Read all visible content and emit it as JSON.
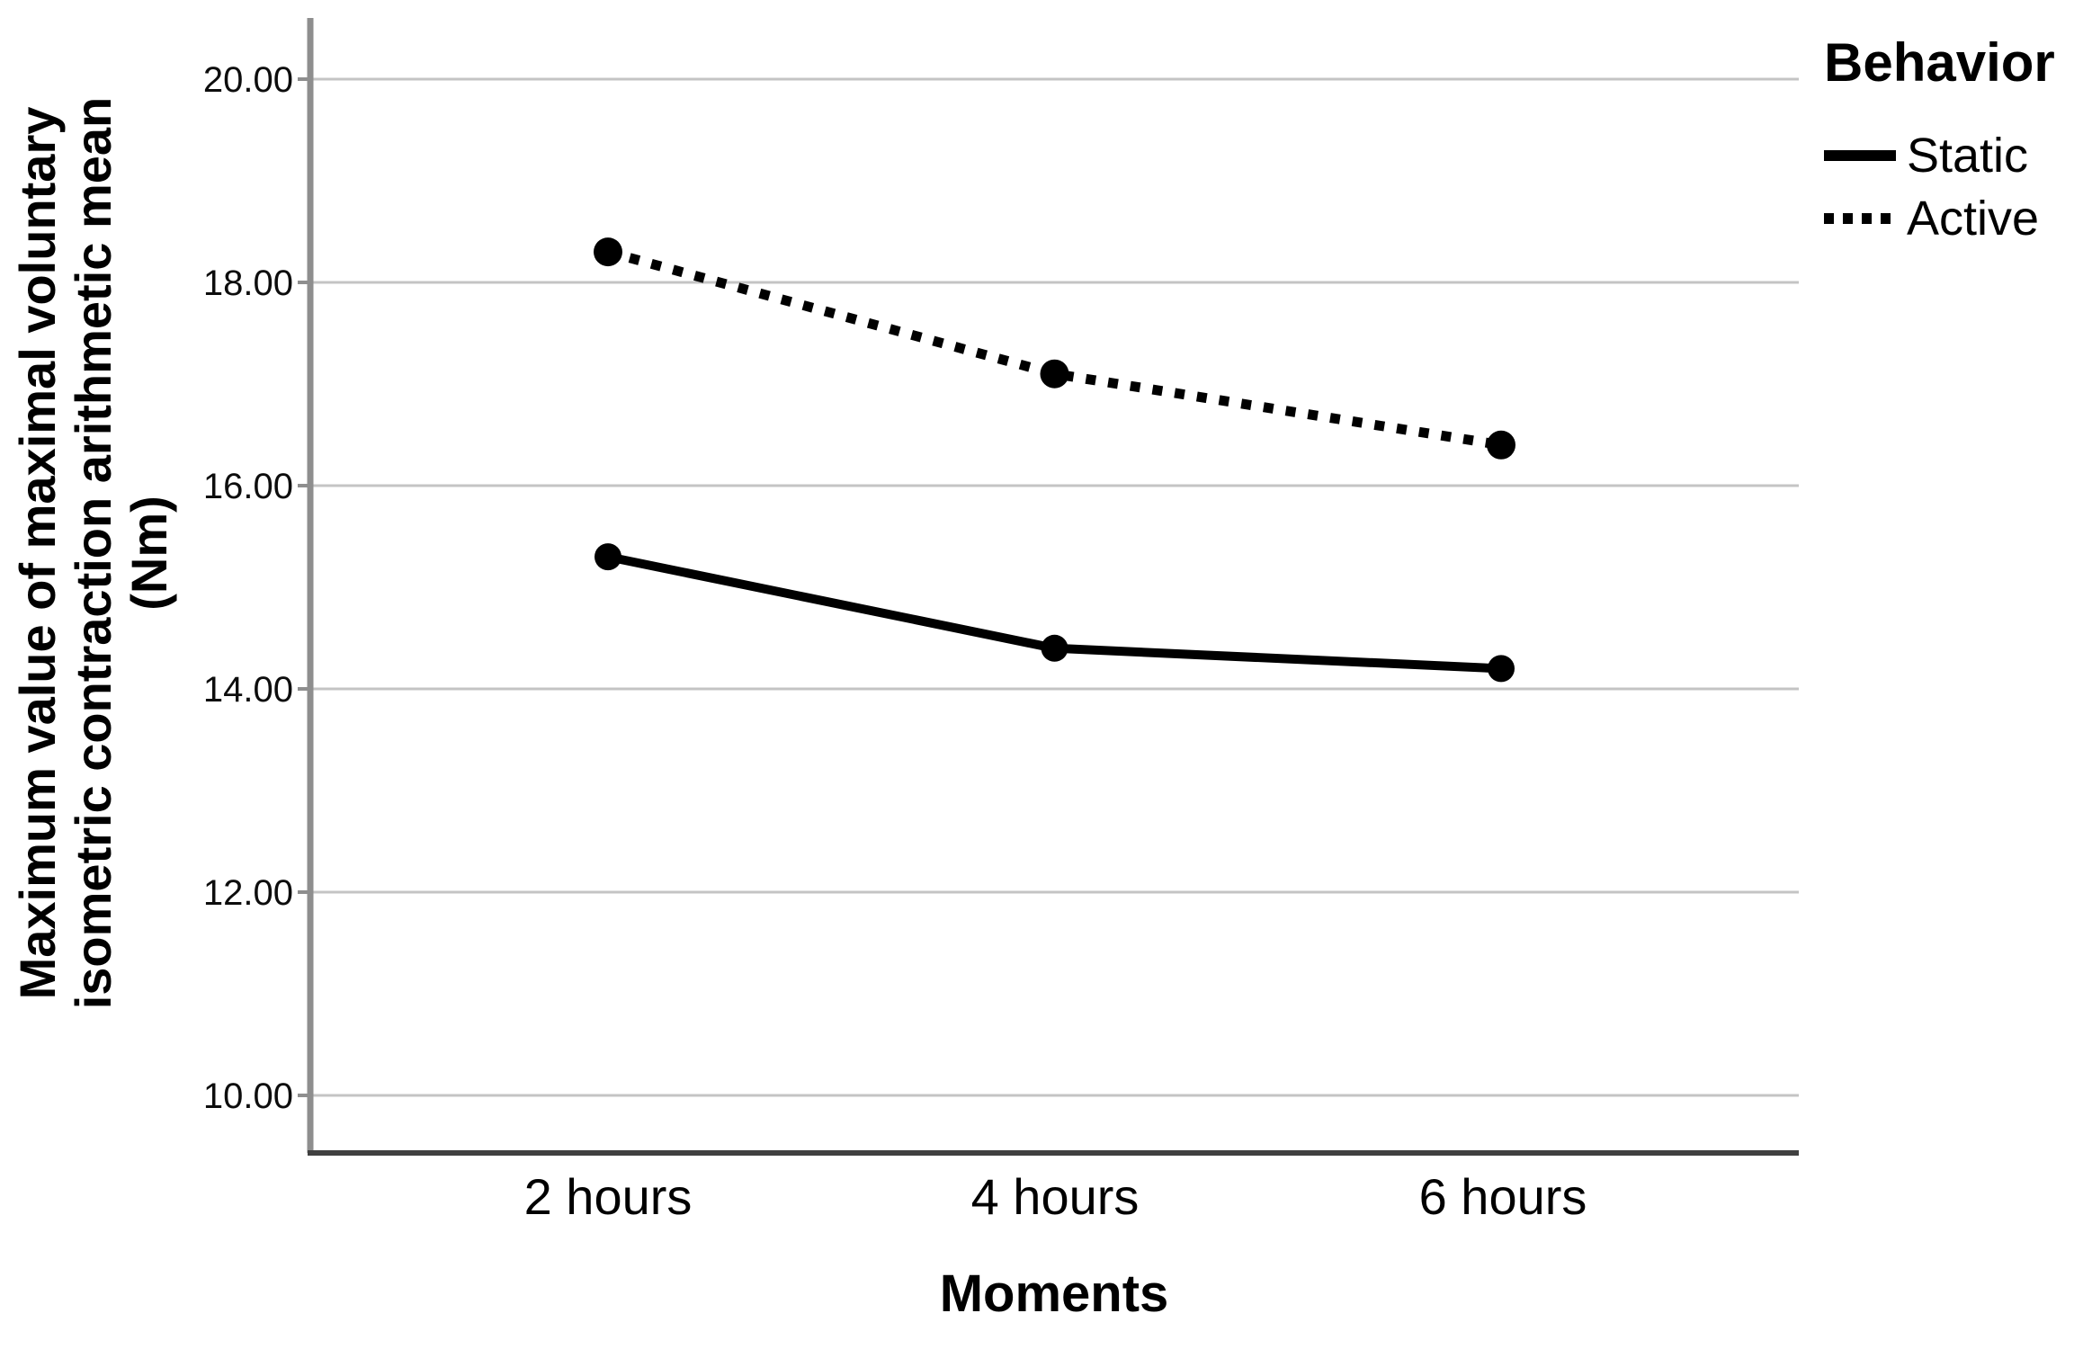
{
  "chart_data": {
    "type": "line",
    "categories": [
      "2 hours",
      "4 hours",
      "6 hours"
    ],
    "series": [
      {
        "name": "Static",
        "style": "solid",
        "values": [
          15.3,
          14.4,
          14.2
        ]
      },
      {
        "name": "Active",
        "style": "dotted",
        "values": [
          18.3,
          17.1,
          16.4
        ]
      }
    ],
    "xlabel": "Moments",
    "ylabel_lines": [
      "Maximum value of maximal voluntary",
      "isometric contraction arithmetic mean",
      "(Nm)"
    ],
    "ylabel_full": "Maximum value of maximal voluntary isometric contraction arithmetic mean (Nm)",
    "y_ticks": [
      {
        "value": 20,
        "label": "20.00"
      },
      {
        "value": 18,
        "label": "18.00"
      },
      {
        "value": 16,
        "label": "16.00"
      },
      {
        "value": 14,
        "label": "14.00"
      },
      {
        "value": 12,
        "label": "12.00"
      },
      {
        "value": 10,
        "label": "10.00"
      }
    ],
    "ylim": [
      9.43,
      20.4
    ],
    "grid": "horizontal",
    "legend": {
      "title": "Behavior",
      "position": "top-right"
    },
    "colors": {
      "series": "#000000",
      "gridline": "#c4c4c4",
      "y_axis_line": "#8e8e8e",
      "x_axis_line": "#404040",
      "text": "#0d0d0d"
    }
  }
}
